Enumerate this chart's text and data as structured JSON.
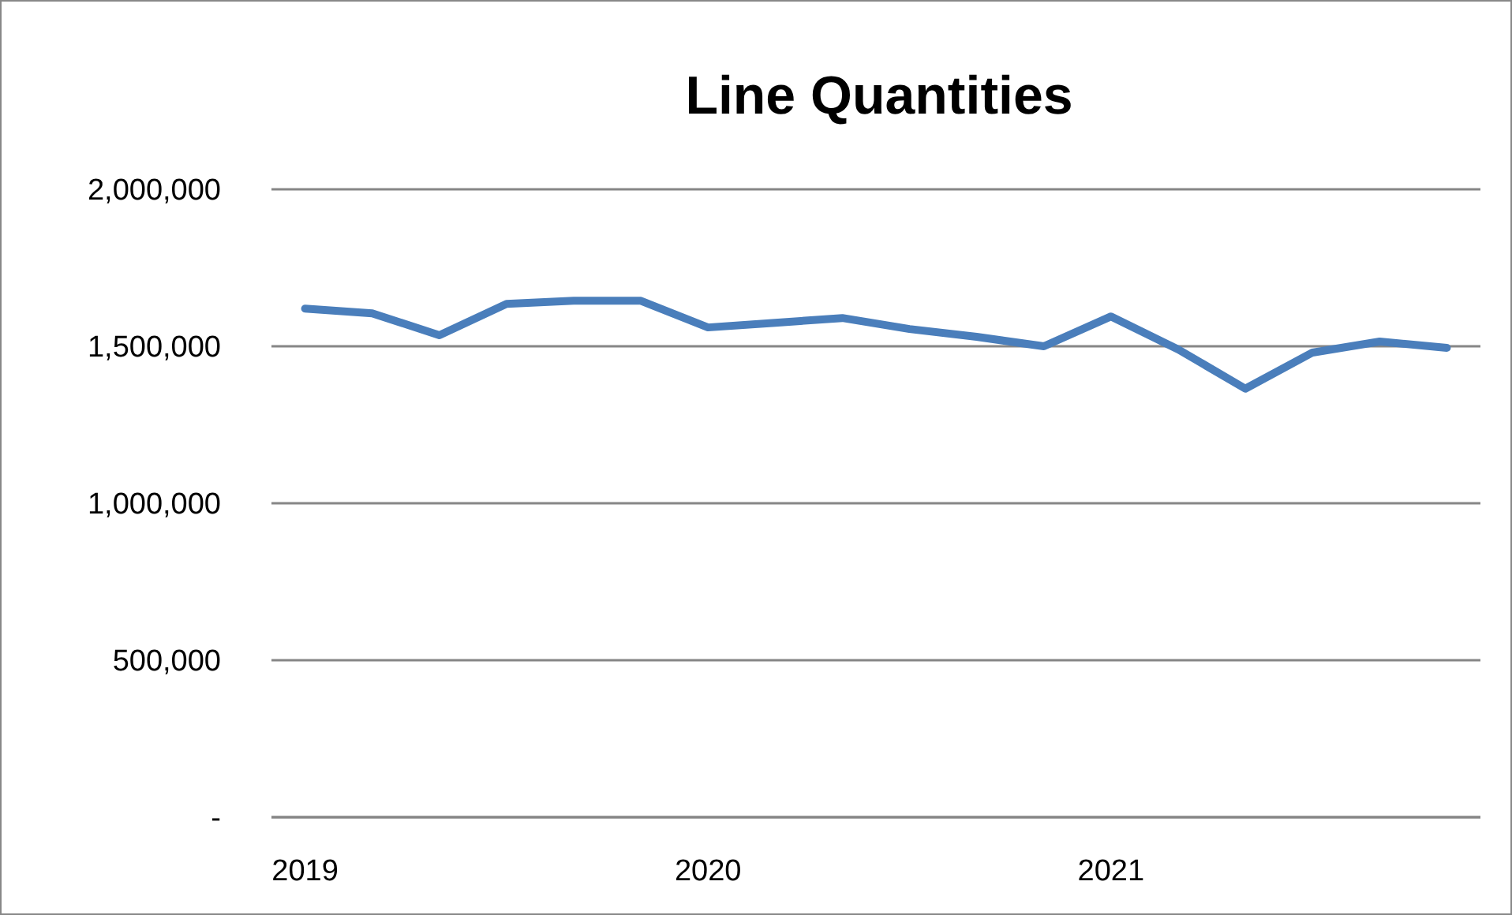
{
  "chart_data": {
    "type": "line",
    "title": "Line Quantities",
    "categories": [
      "2019",
      null,
      null,
      null,
      null,
      null,
      "2020",
      null,
      null,
      null,
      null,
      null,
      "2021",
      null,
      null,
      null,
      null,
      null
    ],
    "series": [
      {
        "color": "#4a7ebb",
        "values": [
          1620000,
          1605000,
          1535000,
          1635000,
          1645000,
          1645000,
          1560000,
          1575000,
          1590000,
          1555000,
          1530000,
          1500000,
          1595000,
          1490000,
          1365000,
          1480000,
          1515000,
          1495000
        ]
      }
    ],
    "ylim": [
      0,
      2000000
    ],
    "yticks": [
      {
        "value": 0,
        "label": "-"
      },
      {
        "value": 500000,
        "label": "500,000"
      },
      {
        "value": 1000000,
        "label": "1,000,000"
      },
      {
        "value": 1500000,
        "label": "1,500,000"
      },
      {
        "value": 2000000,
        "label": "2,000,000"
      }
    ],
    "grid": "y",
    "marker": "none",
    "line_style": "solid"
  }
}
